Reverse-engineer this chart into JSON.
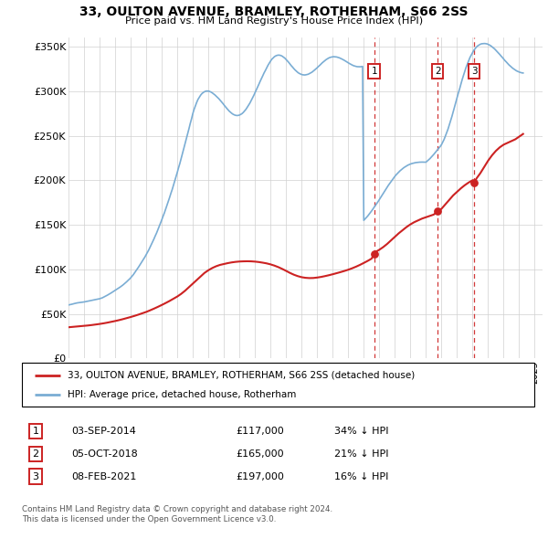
{
  "title": "33, OULTON AVENUE, BRAMLEY, ROTHERHAM, S66 2SS",
  "subtitle": "Price paid vs. HM Land Registry's House Price Index (HPI)",
  "hpi_label": "HPI: Average price, detached house, Rotherham",
  "property_label": "33, OULTON AVENUE, BRAMLEY, ROTHERHAM, S66 2SS (detached house)",
  "footer1": "Contains HM Land Registry data © Crown copyright and database right 2024.",
  "footer2": "This data is licensed under the Open Government Licence v3.0.",
  "hpi_color": "#7aadd4",
  "property_color": "#cc2222",
  "vline_color": "#cc2222",
  "ylim": [
    0,
    360000
  ],
  "yticks": [
    0,
    50000,
    100000,
    150000,
    200000,
    250000,
    300000,
    350000
  ],
  "ytick_labels": [
    "£0",
    "£50K",
    "£100K",
    "£150K",
    "£200K",
    "£250K",
    "£300K",
    "£350K"
  ],
  "sales": [
    {
      "num": 1,
      "date": "03-SEP-2014",
      "price": 117000,
      "hpi_pct": "34%",
      "x_year": 2014.67
    },
    {
      "num": 2,
      "date": "05-OCT-2018",
      "price": 165000,
      "hpi_pct": "21%",
      "x_year": 2018.75
    },
    {
      "num": 3,
      "date": "08-FEB-2021",
      "price": 197000,
      "hpi_pct": "16%",
      "x_year": 2021.1
    }
  ],
  "xmin": 1995.0,
  "xmax": 2025.5,
  "hpi_years": [
    1995.0,
    1995.08,
    1995.17,
    1995.25,
    1995.33,
    1995.42,
    1995.5,
    1995.58,
    1995.67,
    1995.75,
    1995.83,
    1995.92,
    1996.0,
    1996.08,
    1996.17,
    1996.25,
    1996.33,
    1996.42,
    1996.5,
    1996.58,
    1996.67,
    1996.75,
    1996.83,
    1996.92,
    1997.0,
    1997.08,
    1997.17,
    1997.25,
    1997.33,
    1997.42,
    1997.5,
    1997.58,
    1997.67,
    1997.75,
    1997.83,
    1997.92,
    1998.0,
    1998.08,
    1998.17,
    1998.25,
    1998.33,
    1998.42,
    1998.5,
    1998.58,
    1998.67,
    1998.75,
    1998.83,
    1998.92,
    1999.0,
    1999.08,
    1999.17,
    1999.25,
    1999.33,
    1999.42,
    1999.5,
    1999.58,
    1999.67,
    1999.75,
    1999.83,
    1999.92,
    2000.0,
    2000.08,
    2000.17,
    2000.25,
    2000.33,
    2000.42,
    2000.5,
    2000.58,
    2000.67,
    2000.75,
    2000.83,
    2000.92,
    2001.0,
    2001.08,
    2001.17,
    2001.25,
    2001.33,
    2001.42,
    2001.5,
    2001.58,
    2001.67,
    2001.75,
    2001.83,
    2001.92,
    2002.0,
    2002.08,
    2002.17,
    2002.25,
    2002.33,
    2002.42,
    2002.5,
    2002.58,
    2002.67,
    2002.75,
    2002.83,
    2002.92,
    2003.0,
    2003.08,
    2003.17,
    2003.25,
    2003.33,
    2003.42,
    2003.5,
    2003.58,
    2003.67,
    2003.75,
    2003.83,
    2003.92,
    2004.0,
    2004.08,
    2004.17,
    2004.25,
    2004.33,
    2004.42,
    2004.5,
    2004.58,
    2004.67,
    2004.75,
    2004.83,
    2004.92,
    2005.0,
    2005.08,
    2005.17,
    2005.25,
    2005.33,
    2005.42,
    2005.5,
    2005.58,
    2005.67,
    2005.75,
    2005.83,
    2005.92,
    2006.0,
    2006.08,
    2006.17,
    2006.25,
    2006.33,
    2006.42,
    2006.5,
    2006.58,
    2006.67,
    2006.75,
    2006.83,
    2006.92,
    2007.0,
    2007.08,
    2007.17,
    2007.25,
    2007.33,
    2007.42,
    2007.5,
    2007.58,
    2007.67,
    2007.75,
    2007.83,
    2007.92,
    2008.0,
    2008.08,
    2008.17,
    2008.25,
    2008.33,
    2008.42,
    2008.5,
    2008.58,
    2008.67,
    2008.75,
    2008.83,
    2008.92,
    2009.0,
    2009.08,
    2009.17,
    2009.25,
    2009.33,
    2009.42,
    2009.5,
    2009.58,
    2009.67,
    2009.75,
    2009.83,
    2009.92,
    2010.0,
    2010.08,
    2010.17,
    2010.25,
    2010.33,
    2010.42,
    2010.5,
    2010.58,
    2010.67,
    2010.75,
    2010.83,
    2010.92,
    2011.0,
    2011.08,
    2011.17,
    2011.25,
    2011.33,
    2011.42,
    2011.5,
    2011.58,
    2011.67,
    2011.75,
    2011.83,
    2011.92,
    2012.0,
    2012.08,
    2012.17,
    2012.25,
    2012.33,
    2012.42,
    2012.5,
    2012.58,
    2012.67,
    2012.75,
    2012.83,
    2012.92,
    2013.0,
    2013.08,
    2013.17,
    2013.25,
    2013.33,
    2013.42,
    2013.5,
    2013.58,
    2013.67,
    2013.75,
    2013.83,
    2013.92,
    2014.0,
    2014.08,
    2014.17,
    2014.25,
    2014.33,
    2014.42,
    2014.5,
    2014.58,
    2014.67,
    2014.75,
    2014.83,
    2014.92,
    2015.0,
    2015.08,
    2015.17,
    2015.25,
    2015.33,
    2015.42,
    2015.5,
    2015.58,
    2015.67,
    2015.75,
    2015.83,
    2015.92,
    2016.0,
    2016.08,
    2016.17,
    2016.25,
    2016.33,
    2016.42,
    2016.5,
    2016.58,
    2016.67,
    2016.75,
    2016.83,
    2016.92,
    2017.0,
    2017.08,
    2017.17,
    2017.25,
    2017.33,
    2017.42,
    2017.5,
    2017.58,
    2017.67,
    2017.75,
    2017.83,
    2017.92,
    2018.0,
    2018.08,
    2018.17,
    2018.25,
    2018.33,
    2018.42,
    2018.5,
    2018.58,
    2018.67,
    2018.75,
    2018.83,
    2018.92,
    2019.0,
    2019.08,
    2019.17,
    2019.25,
    2019.33,
    2019.42,
    2019.5,
    2019.58,
    2019.67,
    2019.75,
    2019.83,
    2019.92,
    2020.0,
    2020.08,
    2020.17,
    2020.25,
    2020.33,
    2020.42,
    2020.5,
    2020.58,
    2020.67,
    2020.75,
    2020.83,
    2020.92,
    2021.0,
    2021.08,
    2021.17,
    2021.25,
    2021.33,
    2021.42,
    2021.5,
    2021.58,
    2021.67,
    2021.75,
    2021.83,
    2021.92,
    2022.0,
    2022.08,
    2022.17,
    2022.25,
    2022.33,
    2022.42,
    2022.5,
    2022.58,
    2022.67,
    2022.75,
    2022.83,
    2022.92,
    2023.0,
    2023.08,
    2023.17,
    2023.25,
    2023.33,
    2023.42,
    2023.5,
    2023.58,
    2023.67,
    2023.75,
    2023.83,
    2023.92,
    2024.0,
    2024.08,
    2024.17,
    2024.25
  ],
  "hpi_values": [
    60000,
    60300,
    60600,
    61000,
    61400,
    61800,
    62100,
    62400,
    62600,
    62800,
    63000,
    63200,
    63400,
    63700,
    64000,
    64300,
    64600,
    64900,
    65200,
    65500,
    65800,
    66100,
    66400,
    66700,
    67000,
    67500,
    68000,
    68700,
    69400,
    70200,
    71000,
    71800,
    72700,
    73600,
    74500,
    75400,
    76300,
    77200,
    78200,
    79200,
    80200,
    81300,
    82400,
    83600,
    84900,
    86200,
    87600,
    89000,
    90500,
    92200,
    94000,
    96000,
    98100,
    100200,
    102400,
    104600,
    106900,
    109200,
    111600,
    114000,
    116500,
    119200,
    122000,
    124900,
    127900,
    131000,
    134200,
    137500,
    140900,
    144400,
    148000,
    151700,
    155500,
    159400,
    163400,
    167500,
    171700,
    176000,
    180400,
    184900,
    189500,
    194200,
    199000,
    203900,
    208900,
    214000,
    219200,
    224500,
    229900,
    235400,
    240900,
    246500,
    252100,
    257800,
    263500,
    269200,
    274900,
    279500,
    283800,
    287500,
    290700,
    293300,
    295500,
    297200,
    298500,
    299400,
    300000,
    300200,
    300100,
    299700,
    299000,
    298100,
    297000,
    295800,
    294500,
    293100,
    291600,
    290000,
    288300,
    286500,
    284700,
    282900,
    281100,
    279400,
    277800,
    276400,
    275200,
    274200,
    273400,
    272900,
    272700,
    272800,
    273200,
    273900,
    274900,
    276200,
    277800,
    279700,
    281800,
    284100,
    286600,
    289300,
    292200,
    295200,
    298200,
    301400,
    304600,
    307800,
    311000,
    314200,
    317300,
    320400,
    323300,
    326200,
    328900,
    331500,
    333800,
    335800,
    337400,
    338700,
    339600,
    340200,
    340500,
    340400,
    340000,
    339300,
    338300,
    337100,
    335600,
    334000,
    332300,
    330500,
    328700,
    327000,
    325300,
    323800,
    322400,
    321100,
    320100,
    319300,
    318700,
    318400,
    318200,
    318300,
    318600,
    319000,
    319700,
    320500,
    321400,
    322500,
    323700,
    325000,
    326300,
    327700,
    329100,
    330500,
    331900,
    333200,
    334400,
    335500,
    336500,
    337300,
    337900,
    338300,
    338600,
    338700,
    338600,
    338400,
    338000,
    337500,
    336900,
    336200,
    335400,
    334600,
    333700,
    332800,
    331900,
    331000,
    330100,
    329400,
    328700,
    328200,
    327800,
    327500,
    327400,
    327400,
    327500,
    327800,
    155000,
    156500,
    158100,
    159800,
    161600,
    163500,
    165500,
    167500,
    169600,
    171700,
    173900,
    176100,
    178300,
    180600,
    182900,
    185200,
    187500,
    189800,
    192100,
    194300,
    196500,
    198600,
    200600,
    202600,
    204400,
    206100,
    207700,
    209200,
    210600,
    211900,
    213100,
    214200,
    215200,
    216100,
    216900,
    217600,
    218200,
    218700,
    219100,
    219500,
    219800,
    220000,
    220200,
    220300,
    220400,
    220400,
    220400,
    220400,
    220300,
    221500,
    222800,
    224200,
    225700,
    227300,
    229000,
    230700,
    232500,
    234300,
    236100,
    238000,
    240000,
    242800,
    246000,
    249500,
    253300,
    257500,
    262000,
    266700,
    271600,
    276700,
    281900,
    287200,
    292500,
    297700,
    302900,
    308000,
    313000,
    317800,
    322400,
    326700,
    330700,
    334400,
    337800,
    340800,
    343500,
    345900,
    347900,
    349600,
    350900,
    351900,
    352700,
    353200,
    353400,
    353500,
    353400,
    353100,
    352600,
    351900,
    351000,
    349900,
    348700,
    347400,
    345900,
    344400,
    342800,
    341200,
    339500,
    337800,
    336100,
    334400,
    332800,
    331200,
    329700,
    328300,
    327000,
    325800,
    324700,
    323700,
    322800,
    322100,
    321500,
    321000,
    320600,
    320400
  ],
  "property_years": [
    1995.0,
    1995.25,
    1995.5,
    1995.75,
    1996.0,
    1996.25,
    1996.5,
    1996.75,
    1997.0,
    1997.25,
    1997.5,
    1997.75,
    1998.0,
    1998.25,
    1998.5,
    1998.75,
    1999.0,
    1999.25,
    1999.5,
    1999.75,
    2000.0,
    2000.25,
    2000.5,
    2000.75,
    2001.0,
    2001.25,
    2001.5,
    2001.75,
    2002.0,
    2002.25,
    2002.5,
    2002.75,
    2003.0,
    2003.25,
    2003.5,
    2003.75,
    2004.0,
    2004.25,
    2004.5,
    2004.75,
    2005.0,
    2005.25,
    2005.5,
    2005.75,
    2006.0,
    2006.25,
    2006.5,
    2006.75,
    2007.0,
    2007.25,
    2007.5,
    2007.75,
    2008.0,
    2008.25,
    2008.5,
    2008.75,
    2009.0,
    2009.25,
    2009.5,
    2009.75,
    2010.0,
    2010.25,
    2010.5,
    2010.75,
    2011.0,
    2011.25,
    2011.5,
    2011.75,
    2012.0,
    2012.25,
    2012.5,
    2012.75,
    2013.0,
    2013.25,
    2013.5,
    2013.75,
    2014.0,
    2014.25,
    2014.5,
    2014.67,
    2014.75,
    2015.0,
    2015.25,
    2015.5,
    2015.75,
    2016.0,
    2016.25,
    2016.5,
    2016.75,
    2017.0,
    2017.25,
    2017.5,
    2017.75,
    2018.0,
    2018.25,
    2018.5,
    2018.75,
    2019.0,
    2019.25,
    2019.5,
    2019.75,
    2020.0,
    2020.25,
    2020.5,
    2020.75,
    2021.0,
    2021.1,
    2021.25,
    2021.5,
    2021.75,
    2022.0,
    2022.25,
    2022.5,
    2022.75,
    2023.0,
    2023.25,
    2023.5,
    2023.75,
    2024.0,
    2024.25
  ],
  "property_values": [
    35000,
    35400,
    35800,
    36200,
    36600,
    37000,
    37500,
    38100,
    38700,
    39400,
    40200,
    41100,
    42000,
    43000,
    44100,
    45300,
    46500,
    47800,
    49200,
    50700,
    52200,
    54000,
    55900,
    57900,
    60000,
    62200,
    64500,
    67000,
    69500,
    72500,
    76000,
    80000,
    84000,
    88000,
    92000,
    96000,
    99000,
    101500,
    103500,
    105000,
    106000,
    107000,
    107800,
    108400,
    108800,
    109000,
    109100,
    109000,
    108700,
    108200,
    107500,
    106700,
    105600,
    104200,
    102500,
    100500,
    98300,
    96000,
    94000,
    92400,
    91200,
    90500,
    90200,
    90300,
    90800,
    91500,
    92400,
    93400,
    94500,
    95700,
    96900,
    98200,
    99600,
    101200,
    103000,
    105000,
    107200,
    109500,
    112000,
    117000,
    119500,
    122000,
    125000,
    128500,
    132500,
    136500,
    140500,
    144000,
    147500,
    150500,
    153000,
    155000,
    157000,
    158500,
    160000,
    161500,
    165000,
    168000,
    173000,
    178000,
    183000,
    187000,
    191000,
    194500,
    197500,
    200000,
    197000,
    202000,
    208000,
    215000,
    222000,
    228000,
    233000,
    237000,
    240000,
    242000,
    244000,
    246000,
    249000,
    252000
  ]
}
